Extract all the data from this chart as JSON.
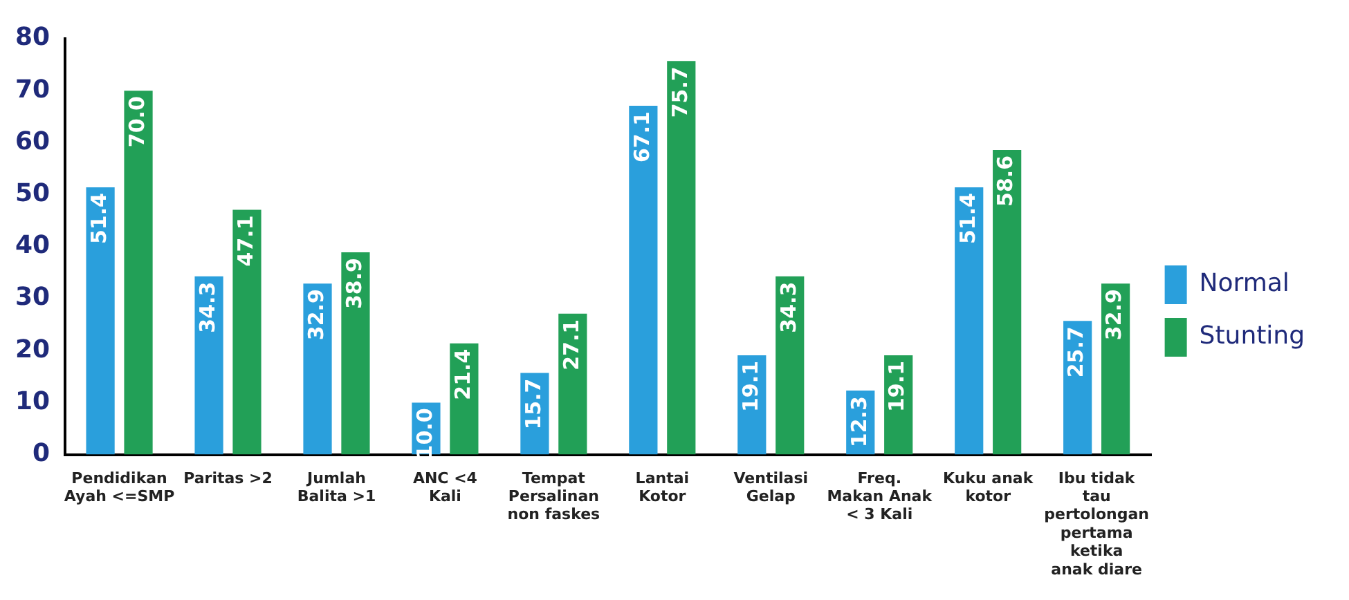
{
  "chart_data": {
    "type": "bar",
    "categories": [
      "Pendidikan Ayah <=SMP",
      "Paritas >2",
      "Jumlah Balita >1",
      "ANC <4 Kali",
      "Tempat Persalinan non faskes",
      "Lantai Kotor",
      "Ventilasi Gelap",
      "Freq. Makan Anak < 3 Kali",
      "Kuku anak kotor",
      "Ibu tidak tau pertolongan pertama ketika anak diare"
    ],
    "series": [
      {
        "name": "Normal",
        "color": "#2a9fdc",
        "values": [
          51.4,
          34.3,
          32.9,
          10.0,
          15.7,
          67.1,
          19.1,
          12.3,
          51.4,
          25.7
        ],
        "value_labels": [
          "51.4",
          "34.3",
          "32.9",
          "10.0",
          "15.7",
          "67.1",
          "19.1",
          "12.3",
          "51.4",
          "25.7"
        ]
      },
      {
        "name": "Stunting",
        "color": "#22a057",
        "values": [
          70.0,
          47.1,
          38.9,
          21.4,
          27.1,
          75.7,
          34.3,
          19.1,
          58.6,
          32.9
        ],
        "value_labels": [
          "70.0",
          "47.1",
          "38.9",
          "21.4",
          "27.1",
          "75.7",
          "34.3",
          "19.1",
          "58.6",
          "32.9"
        ]
      }
    ],
    "ylim": [
      0,
      80
    ],
    "yticks": [
      0,
      10,
      20,
      30,
      40,
      50,
      60,
      70,
      80
    ],
    "grid": false,
    "legend": "right"
  }
}
